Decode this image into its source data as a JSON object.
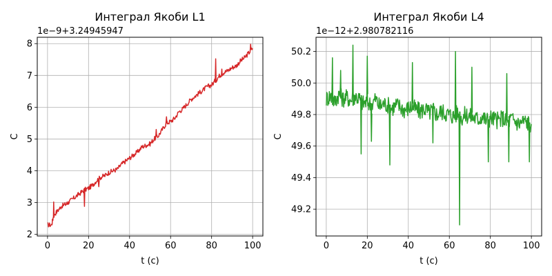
{
  "chart_data": [
    {
      "type": "line",
      "title": "Интеграл Якоби L1",
      "xlabel": "t (c)",
      "ylabel": "C",
      "offset_text": "1e−9+3.24945947",
      "xlim": [
        -5,
        105
      ],
      "ylim": [
        1.95,
        8.2
      ],
      "xticks": [
        0,
        20,
        40,
        60,
        80,
        100
      ],
      "yticks": [
        2,
        3,
        4,
        5,
        6,
        7,
        8
      ],
      "xtick_labels": [
        "0",
        "20",
        "40",
        "60",
        "80",
        "100"
      ],
      "ytick_labels": [
        "2",
        "3",
        "4",
        "5",
        "6",
        "7",
        "8"
      ],
      "grid": true,
      "color": "#d62728",
      "series": [
        {
          "x": [
            0,
            2,
            3,
            5,
            7,
            9,
            10,
            12,
            14,
            16,
            18,
            20,
            22,
            24,
            26,
            28,
            30,
            32,
            34,
            36,
            38,
            40,
            42,
            44,
            46,
            48,
            50,
            52,
            54,
            56,
            58,
            60,
            62,
            64,
            66,
            68,
            70,
            72,
            74,
            76,
            78,
            80,
            82,
            84,
            86,
            88,
            90,
            92,
            94,
            96,
            98,
            100
          ],
          "y": [
            2.3,
            2.3,
            2.6,
            2.75,
            2.9,
            2.95,
            3.0,
            3.1,
            3.2,
            3.3,
            3.4,
            3.45,
            3.55,
            3.7,
            3.8,
            3.85,
            3.95,
            4.0,
            4.05,
            4.2,
            4.3,
            4.4,
            4.5,
            4.6,
            4.75,
            4.8,
            4.85,
            5.0,
            5.1,
            5.3,
            5.5,
            5.55,
            5.65,
            5.85,
            5.95,
            6.1,
            6.25,
            6.35,
            6.45,
            6.55,
            6.65,
            6.7,
            6.85,
            7.0,
            7.1,
            7.15,
            7.25,
            7.3,
            7.45,
            7.55,
            7.7,
            7.85
          ]
        }
      ],
      "spikes": [
        {
          "x": 3,
          "y": 3.02
        },
        {
          "x": 18,
          "y": 2.88
        },
        {
          "x": 25,
          "y": 3.5
        },
        {
          "x": 53,
          "y": 5.3
        },
        {
          "x": 58,
          "y": 5.7
        },
        {
          "x": 82,
          "y": 7.52
        },
        {
          "x": 85,
          "y": 7.2
        },
        {
          "x": 99,
          "y": 7.98
        }
      ]
    },
    {
      "type": "line",
      "title": "Интеграл Якоби L4",
      "xlabel": "t (c)",
      "ylabel": "C",
      "offset_text": "1e−12+2.980782116",
      "xlim": [
        -5,
        105
      ],
      "ylim": [
        49.03,
        50.29
      ],
      "xticks": [
        0,
        20,
        40,
        60,
        80,
        100
      ],
      "yticks": [
        49.2,
        49.4,
        49.6,
        49.8,
        50.0,
        50.2
      ],
      "xtick_labels": [
        "0",
        "20",
        "40",
        "60",
        "80",
        "100"
      ],
      "ytick_labels": [
        "49.2",
        "49.4",
        "49.6",
        "49.8",
        "50.0",
        "50.2"
      ],
      "grid": true,
      "color": "#2ca02c",
      "series": [
        {
          "x": [
            0,
            2,
            4,
            6,
            8,
            10,
            12,
            14,
            16,
            18,
            20,
            22,
            24,
            26,
            28,
            30,
            32,
            34,
            36,
            38,
            40,
            42,
            44,
            46,
            48,
            50,
            52,
            54,
            56,
            58,
            60,
            62,
            64,
            66,
            68,
            70,
            72,
            74,
            76,
            78,
            80,
            82,
            84,
            86,
            88,
            90,
            92,
            94,
            96,
            98,
            100
          ],
          "y": [
            49.9,
            49.92,
            49.88,
            49.93,
            49.9,
            49.91,
            49.89,
            49.92,
            49.9,
            49.87,
            49.88,
            49.86,
            49.9,
            49.85,
            49.87,
            49.86,
            49.84,
            49.86,
            49.85,
            49.83,
            49.84,
            49.85,
            49.83,
            49.82,
            49.84,
            49.81,
            49.83,
            49.8,
            49.82,
            49.81,
            49.8,
            49.79,
            49.81,
            49.78,
            49.8,
            49.79,
            49.78,
            49.77,
            49.79,
            49.76,
            49.78,
            49.77,
            49.76,
            49.78,
            49.75,
            49.77,
            49.76,
            49.74,
            49.76,
            49.75,
            49.74
          ]
        }
      ],
      "spikes": [
        {
          "x": 3,
          "y": 50.16
        },
        {
          "x": 7,
          "y": 50.08
        },
        {
          "x": 13,
          "y": 50.24
        },
        {
          "x": 17,
          "y": 49.55
        },
        {
          "x": 20,
          "y": 50.17
        },
        {
          "x": 22,
          "y": 49.63
        },
        {
          "x": 31,
          "y": 49.48
        },
        {
          "x": 42,
          "y": 50.13
        },
        {
          "x": 52,
          "y": 49.62
        },
        {
          "x": 63,
          "y": 50.2
        },
        {
          "x": 65,
          "y": 49.1
        },
        {
          "x": 71,
          "y": 50.1
        },
        {
          "x": 79,
          "y": 49.5
        },
        {
          "x": 88,
          "y": 50.06
        },
        {
          "x": 89,
          "y": 49.5
        },
        {
          "x": 99,
          "y": 49.5
        }
      ]
    }
  ]
}
